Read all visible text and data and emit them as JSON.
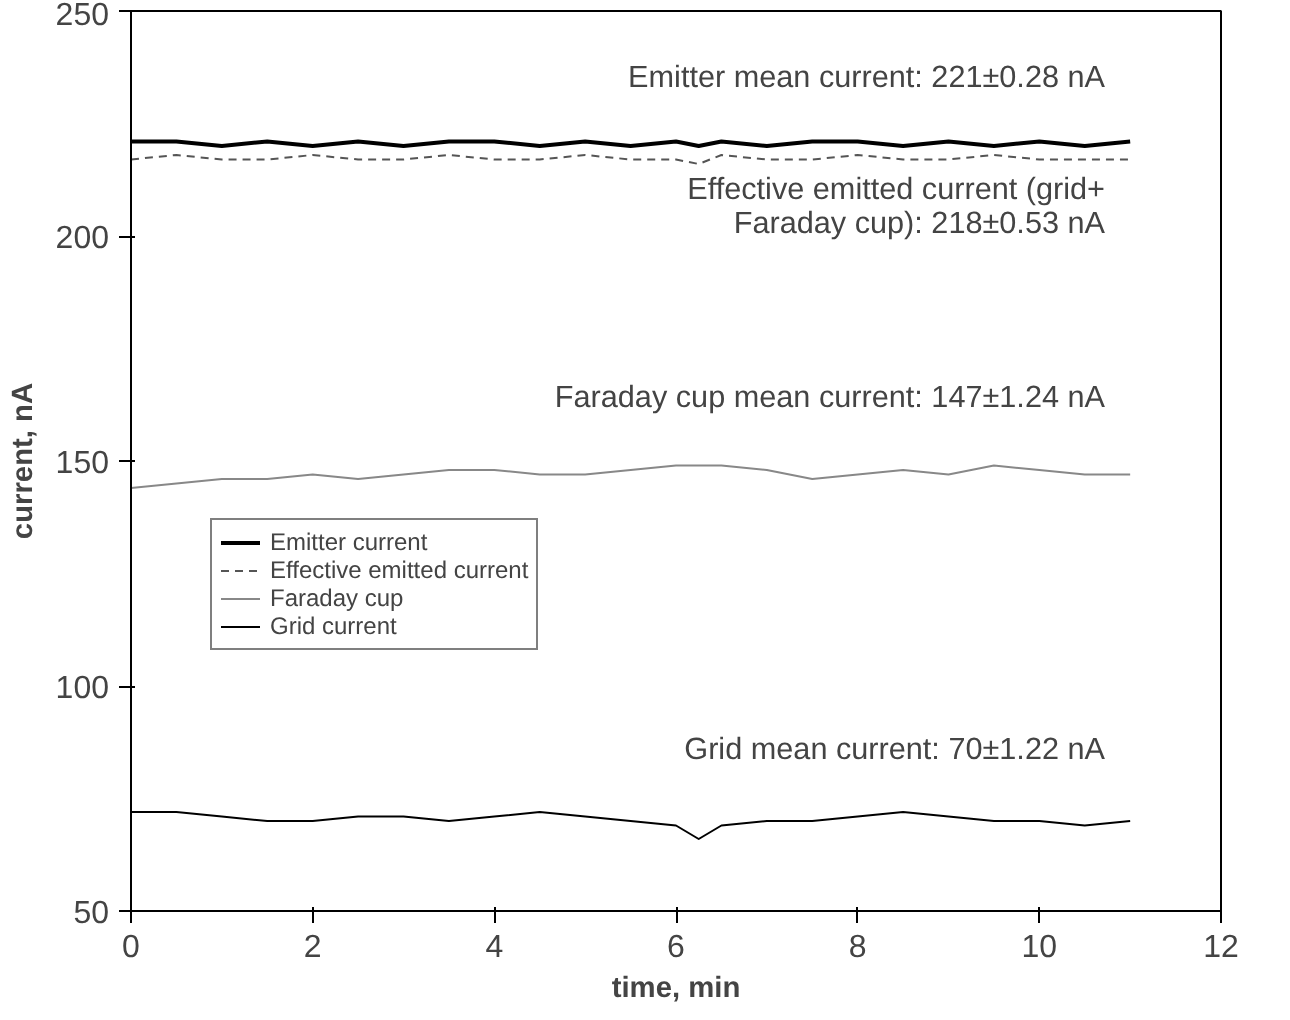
{
  "chart_data": {
    "type": "line",
    "xlabel": "time, min",
    "ylabel": "current, nA",
    "x": [
      0,
      0.5,
      1,
      1.5,
      2,
      2.5,
      3,
      3.5,
      4,
      4.5,
      5,
      5.5,
      6,
      6.25,
      6.5,
      7,
      7.5,
      8,
      8.5,
      9,
      9.5,
      10,
      10.5,
      11
    ],
    "series": [
      {
        "name": "Emitter current",
        "color": "#000000",
        "line_style": "solid",
        "values": [
          221,
          221,
          220,
          221,
          220,
          221,
          220,
          221,
          221,
          220,
          221,
          220,
          221,
          220,
          221,
          220,
          221,
          221,
          220,
          221,
          220,
          221,
          220,
          221
        ]
      },
      {
        "name": "Effective emitted current",
        "color": "#555555",
        "line_style": "dashed",
        "values": [
          217,
          218,
          217,
          217,
          218,
          217,
          217,
          218,
          217,
          217,
          218,
          217,
          217,
          216,
          218,
          217,
          217,
          218,
          217,
          217,
          218,
          217,
          217,
          217
        ]
      },
      {
        "name": "Faraday cup",
        "color": "#888888",
        "line_style": "solid",
        "values": [
          144,
          145,
          146,
          146,
          147,
          146,
          147,
          148,
          148,
          147,
          147,
          148,
          149,
          149,
          149,
          148,
          146,
          147,
          148,
          147,
          149,
          148,
          147,
          147
        ]
      },
      {
        "name": "Grid current",
        "color": "#000000",
        "line_style": "solid",
        "values": [
          72,
          72,
          71,
          70,
          70,
          71,
          71,
          70,
          71,
          72,
          71,
          70,
          69,
          66,
          69,
          70,
          70,
          71,
          72,
          71,
          70,
          70,
          69,
          70
        ]
      }
    ],
    "xlim": [
      0,
      12
    ],
    "xticks": [
      0,
      2,
      4,
      6,
      8,
      10,
      12
    ],
    "ylim": [
      50,
      250
    ],
    "yticks": [
      50,
      100,
      150,
      200,
      250
    ],
    "legend": "left",
    "grid": false,
    "annotations": [
      "Emitter mean current: 221±0.28 nA",
      "Effective emitted current (grid+\nFaraday cup): 218±0.53 nA",
      "Faraday cup mean current: 147±1.24 nA",
      "Grid mean current: 70±1.22 nA"
    ]
  }
}
